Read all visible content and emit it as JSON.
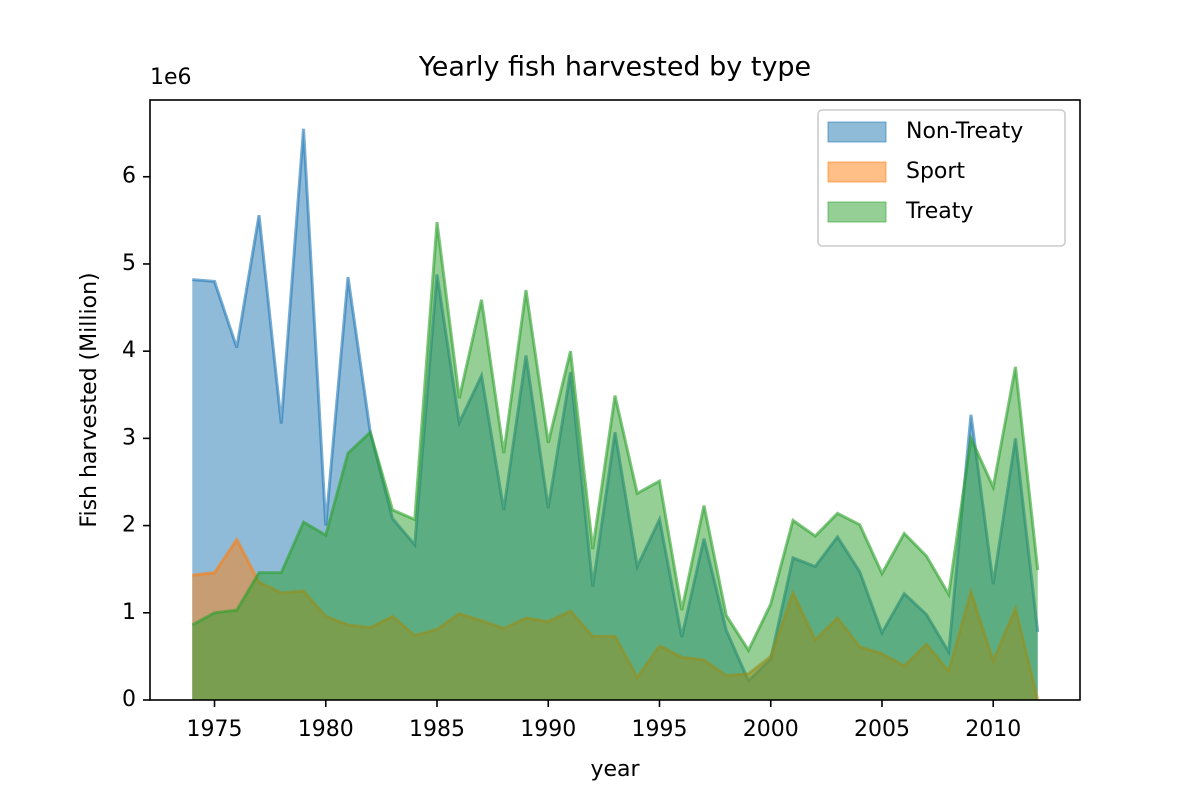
{
  "chart_data": {
    "type": "area",
    "title": "Yearly fish harvested by type",
    "x_label": "year",
    "y_label": "Fish harvested (Million)",
    "y_offset_label": "1e6",
    "x": [
      1974,
      1975,
      1976,
      1977,
      1978,
      1979,
      1980,
      1981,
      1982,
      1983,
      1984,
      1985,
      1986,
      1987,
      1988,
      1989,
      1990,
      1991,
      1992,
      1993,
      1994,
      1995,
      1996,
      1997,
      1998,
      1999,
      2000,
      2001,
      2002,
      2003,
      2004,
      2005,
      2006,
      2007,
      2008,
      2009,
      2010,
      2011,
      2012
    ],
    "series": [
      {
        "name": "Non-Treaty",
        "color": "#1f77b4",
        "values": [
          4820000,
          4800000,
          4040000,
          5560000,
          3170000,
          6550000,
          2000000,
          4850000,
          3070000,
          2080000,
          1780000,
          4880000,
          3180000,
          3720000,
          2180000,
          3950000,
          2200000,
          3760000,
          1300000,
          3070000,
          1530000,
          2070000,
          720000,
          1850000,
          800000,
          220000,
          470000,
          1630000,
          1530000,
          1870000,
          1470000,
          770000,
          1220000,
          980000,
          550000,
          3270000,
          1330000,
          3000000,
          780000
        ]
      },
      {
        "name": "Sport",
        "color": "#ff7f0e",
        "values": [
          1430000,
          1460000,
          1840000,
          1350000,
          1230000,
          1250000,
          960000,
          860000,
          830000,
          960000,
          740000,
          810000,
          990000,
          910000,
          820000,
          940000,
          900000,
          1020000,
          730000,
          730000,
          260000,
          620000,
          490000,
          460000,
          280000,
          300000,
          500000,
          1230000,
          690000,
          940000,
          610000,
          530000,
          390000,
          640000,
          330000,
          1240000,
          450000,
          1050000,
          0
        ]
      },
      {
        "name": "Treaty",
        "color": "#2ca02c",
        "values": [
          860000,
          1000000,
          1030000,
          1460000,
          1460000,
          2040000,
          1890000,
          2830000,
          3070000,
          2180000,
          2070000,
          5480000,
          3460000,
          4590000,
          2830000,
          4700000,
          2950000,
          4000000,
          1730000,
          3490000,
          2370000,
          2510000,
          1030000,
          2230000,
          970000,
          570000,
          1100000,
          2060000,
          1880000,
          2140000,
          2010000,
          1450000,
          1910000,
          1650000,
          1210000,
          3000000,
          2440000,
          3820000,
          1490000
        ]
      }
    ],
    "xlim": [
      1972.1,
      2013.9
    ],
    "xticks": [
      1975,
      1980,
      1985,
      1990,
      1995,
      2000,
      2005,
      2010
    ],
    "ylim": [
      0,
      6880000
    ],
    "yticks": [
      {
        "value": 0,
        "label": "0"
      },
      {
        "value": 1000000,
        "label": "1"
      },
      {
        "value": 2000000,
        "label": "2"
      },
      {
        "value": 3000000,
        "label": "3"
      },
      {
        "value": 4000000,
        "label": "4"
      },
      {
        "value": 5000000,
        "label": "5"
      },
      {
        "value": 6000000,
        "label": "6"
      }
    ],
    "legend": "upper right",
    "fill_opacity": 0.5,
    "grid": false
  }
}
